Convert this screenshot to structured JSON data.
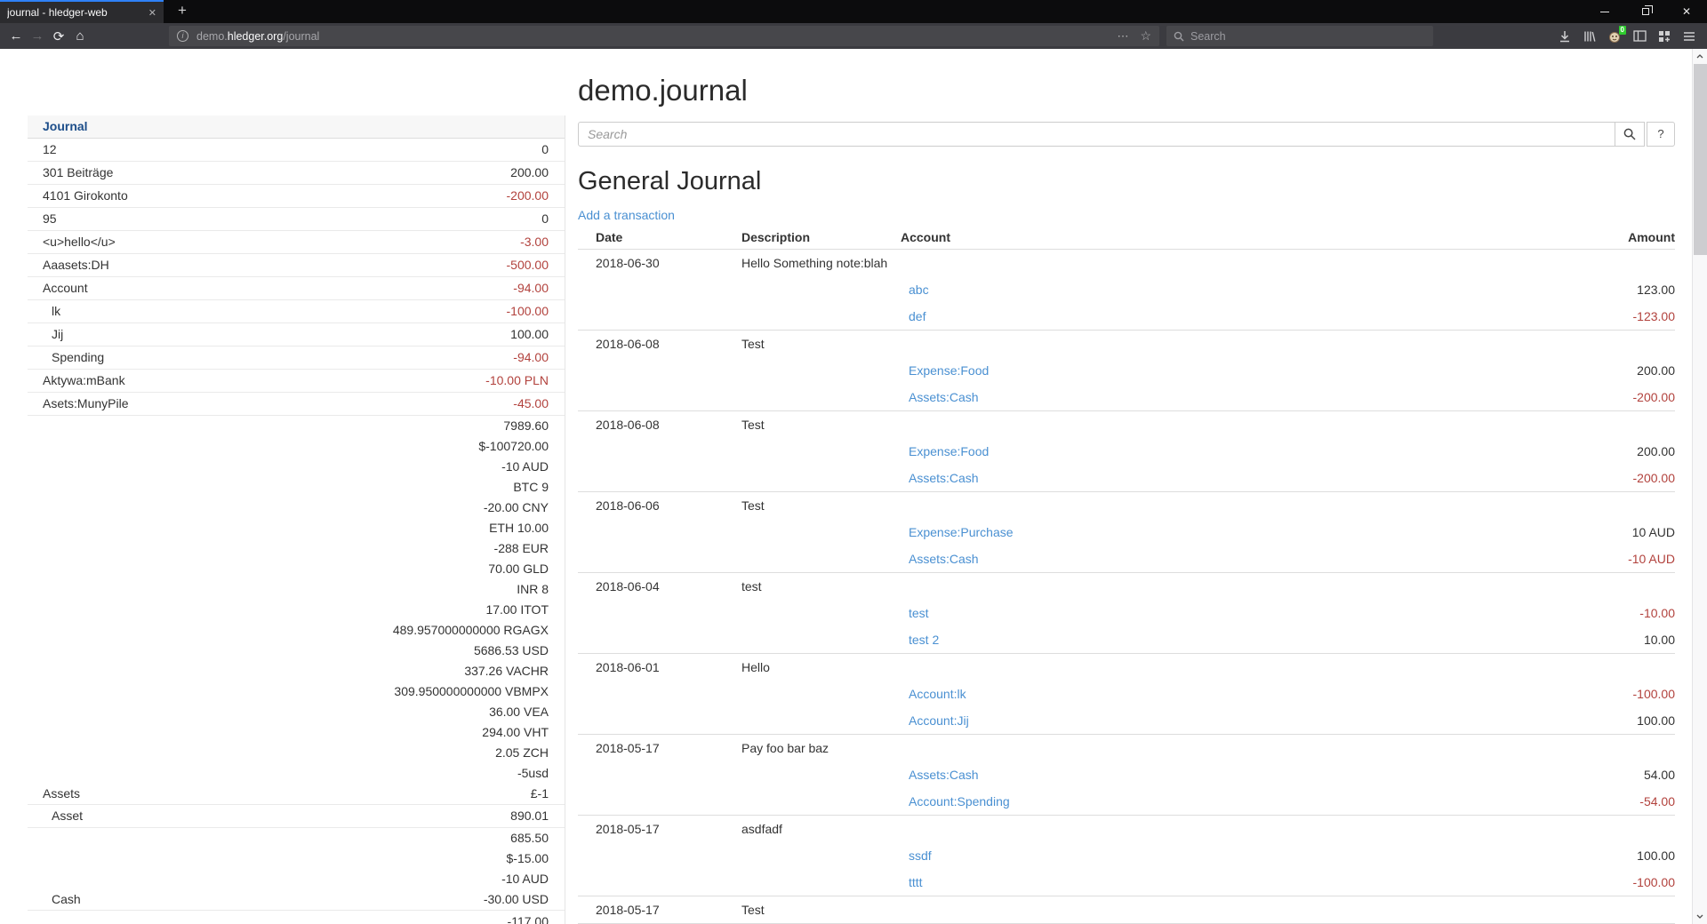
{
  "colors": {
    "link": "#4a90d2",
    "negative": "#b2423d",
    "sidebar_header": "#1d4e8a",
    "tab_accent": "#2f81f7"
  },
  "browser": {
    "tab_title": "journal - hledger-web",
    "close_tab_icon": "✕",
    "new_tab_icon": "+",
    "nav": {
      "back_icon": "←",
      "forward_icon": "→",
      "reload_icon": "⟳",
      "home_icon": "⌂"
    },
    "url": {
      "info_icon": "i",
      "subdomain": "demo.",
      "domain": "hledger.org",
      "path": "/journal",
      "page_actions_icon": "⋯",
      "bookmark_icon": "☆"
    },
    "search_placeholder": "Search",
    "extension_badge": "0",
    "window_close_icon": "✕"
  },
  "sidebar": {
    "header": "Journal",
    "rows": [
      {
        "name": "12",
        "indent": 1,
        "balances": [
          {
            "text": "0",
            "red": false
          }
        ]
      },
      {
        "name": "301 Beiträge",
        "indent": 1,
        "balances": [
          {
            "text": "200.00",
            "red": false
          }
        ]
      },
      {
        "name": "4101 Girokonto",
        "indent": 1,
        "balances": [
          {
            "text": "-200.00",
            "red": true
          }
        ]
      },
      {
        "name": "95",
        "indent": 1,
        "balances": [
          {
            "text": "0",
            "red": false
          }
        ]
      },
      {
        "name": "<u>hello</u>",
        "indent": 1,
        "balances": [
          {
            "text": "-3.00",
            "red": true
          }
        ]
      },
      {
        "name": "Aaasets:DH",
        "indent": 1,
        "balances": [
          {
            "text": "-500.00",
            "red": true
          }
        ]
      },
      {
        "name": "Account",
        "indent": 1,
        "balances": [
          {
            "text": "-94.00",
            "red": true
          }
        ]
      },
      {
        "name": "lk",
        "indent": 2,
        "balances": [
          {
            "text": "-100.00",
            "red": true
          }
        ]
      },
      {
        "name": "Jij",
        "indent": 2,
        "balances": [
          {
            "text": "100.00",
            "red": false
          }
        ]
      },
      {
        "name": "Spending",
        "indent": 2,
        "balances": [
          {
            "text": "-94.00",
            "red": true
          }
        ]
      },
      {
        "name": "Aktywa:mBank",
        "indent": 1,
        "balances": [
          {
            "text": "-10.00 PLN",
            "red": true
          }
        ]
      },
      {
        "name": "Asets:MunyPile",
        "indent": 1,
        "balances": [
          {
            "text": "-45.00",
            "red": true
          }
        ]
      },
      {
        "name": "Assets",
        "indent": 1,
        "balances": [
          {
            "text": "7989.60",
            "red": false
          },
          {
            "text": "$-100720.00",
            "red": false
          },
          {
            "text": "-10 AUD",
            "red": false
          },
          {
            "text": "BTC 9",
            "red": false
          },
          {
            "text": "-20.00 CNY",
            "red": false
          },
          {
            "text": "ETH 10.00",
            "red": false
          },
          {
            "text": "-288 EUR",
            "red": false
          },
          {
            "text": "70.00 GLD",
            "red": false
          },
          {
            "text": "INR 8",
            "red": false
          },
          {
            "text": "17.00 ITOT",
            "red": false
          },
          {
            "text": "489.957000000000 RGAGX",
            "red": false
          },
          {
            "text": "5686.53 USD",
            "red": false
          },
          {
            "text": "337.26 VACHR",
            "red": false
          },
          {
            "text": "309.950000000000 VBMPX",
            "red": false
          },
          {
            "text": "36.00 VEA",
            "red": false
          },
          {
            "text": "294.00 VHT",
            "red": false
          },
          {
            "text": "2.05 ZCH",
            "red": false
          },
          {
            "text": "-5usd",
            "red": false
          },
          {
            "text": "£-1",
            "red": false
          }
        ]
      },
      {
        "name": "Asset",
        "indent": 2,
        "balances": [
          {
            "text": "890.01",
            "red": false
          }
        ]
      },
      {
        "name": "Cash",
        "indent": 2,
        "balances": [
          {
            "text": "685.50",
            "red": false
          },
          {
            "text": "$-15.00",
            "red": false
          },
          {
            "text": "-10 AUD",
            "red": false
          },
          {
            "text": "-30.00 USD",
            "red": false
          }
        ]
      },
      {
        "name": "",
        "indent": 1,
        "balances": [
          {
            "text": "-117.00",
            "red": false
          }
        ]
      }
    ]
  },
  "main": {
    "title": "demo.journal",
    "search": {
      "placeholder": "Search",
      "help_label": "?"
    },
    "section_title": "General Journal",
    "add_link": "Add a transaction",
    "table": {
      "headers": [
        "Date",
        "Description",
        "Account",
        "Amount"
      ],
      "transactions": [
        {
          "date": "2018-06-30",
          "description": "Hello Something note:blah",
          "postings": [
            {
              "account": "abc",
              "amount": "123.00",
              "red": false
            },
            {
              "account": "def",
              "amount": "-123.00",
              "red": true
            }
          ]
        },
        {
          "date": "2018-06-08",
          "description": "Test",
          "postings": [
            {
              "account": "Expense:Food",
              "amount": "200.00",
              "red": false
            },
            {
              "account": "Assets:Cash",
              "amount": "-200.00",
              "red": true
            }
          ]
        },
        {
          "date": "2018-06-08",
          "description": "Test",
          "postings": [
            {
              "account": "Expense:Food",
              "amount": "200.00",
              "red": false
            },
            {
              "account": "Assets:Cash",
              "amount": "-200.00",
              "red": true
            }
          ]
        },
        {
          "date": "2018-06-06",
          "description": "Test",
          "postings": [
            {
              "account": "Expense:Purchase",
              "amount": "10 AUD",
              "red": false
            },
            {
              "account": "Assets:Cash",
              "amount": "-10 AUD",
              "red": true
            }
          ]
        },
        {
          "date": "2018-06-04",
          "description": "test",
          "postings": [
            {
              "account": "test",
              "amount": "-10.00",
              "red": true
            },
            {
              "account": "test 2",
              "amount": "10.00",
              "red": false
            }
          ]
        },
        {
          "date": "2018-06-01",
          "description": "Hello",
          "postings": [
            {
              "account": "Account:lk",
              "amount": "-100.00",
              "red": true
            },
            {
              "account": "Account:Jij",
              "amount": "100.00",
              "red": false
            }
          ]
        },
        {
          "date": "2018-05-17",
          "description": "Pay foo bar baz",
          "postings": [
            {
              "account": "Assets:Cash",
              "amount": "54.00",
              "red": false
            },
            {
              "account": "Account:Spending",
              "amount": "-54.00",
              "red": true
            }
          ]
        },
        {
          "date": "2018-05-17",
          "description": "asdfadf",
          "postings": [
            {
              "account": "ssdf",
              "amount": "100.00",
              "red": false
            },
            {
              "account": "tttt",
              "amount": "-100.00",
              "red": true
            }
          ]
        },
        {
          "date": "2018-05-17",
          "description": "Test",
          "postings": []
        }
      ]
    }
  }
}
